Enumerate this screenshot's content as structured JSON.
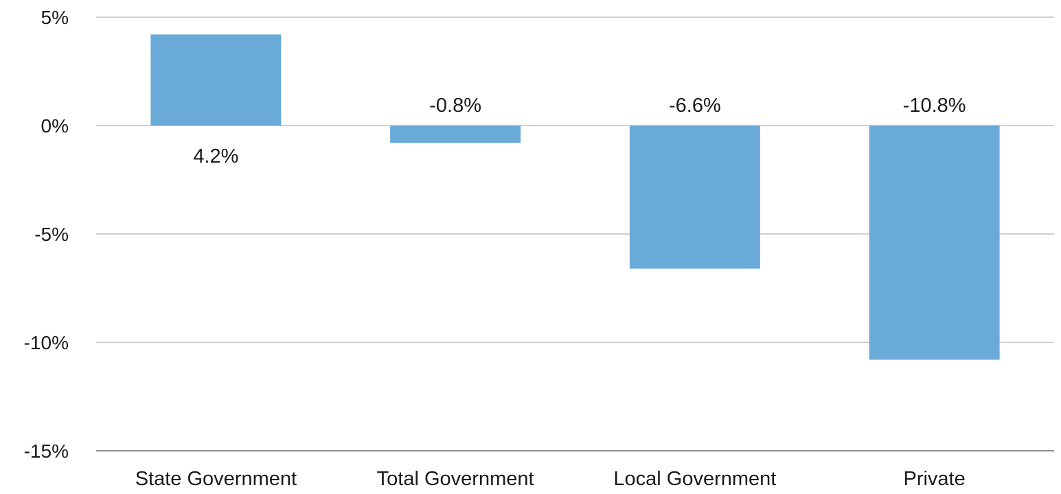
{
  "chart_data": {
    "type": "bar",
    "categories": [
      "State Government",
      "Total Government",
      "Local Government",
      "Private"
    ],
    "values": [
      4.2,
      -0.8,
      -6.6,
      -10.8
    ],
    "data_labels": [
      "4.2%",
      "-0.8%",
      "-6.6%",
      "-10.8%"
    ],
    "title": "",
    "xlabel": "",
    "ylabel": "",
    "ylim": [
      -15,
      5
    ],
    "yticks": [
      5,
      0,
      -5,
      -10,
      -15
    ],
    "ytick_labels": [
      "5%",
      "0%",
      "-5%",
      "-10%",
      "-15%"
    ],
    "grid": true,
    "legend": "none",
    "bar_color": "#6aaad9",
    "grid_color": "#d0d0d0",
    "axis_color": "#8c8c8c"
  }
}
